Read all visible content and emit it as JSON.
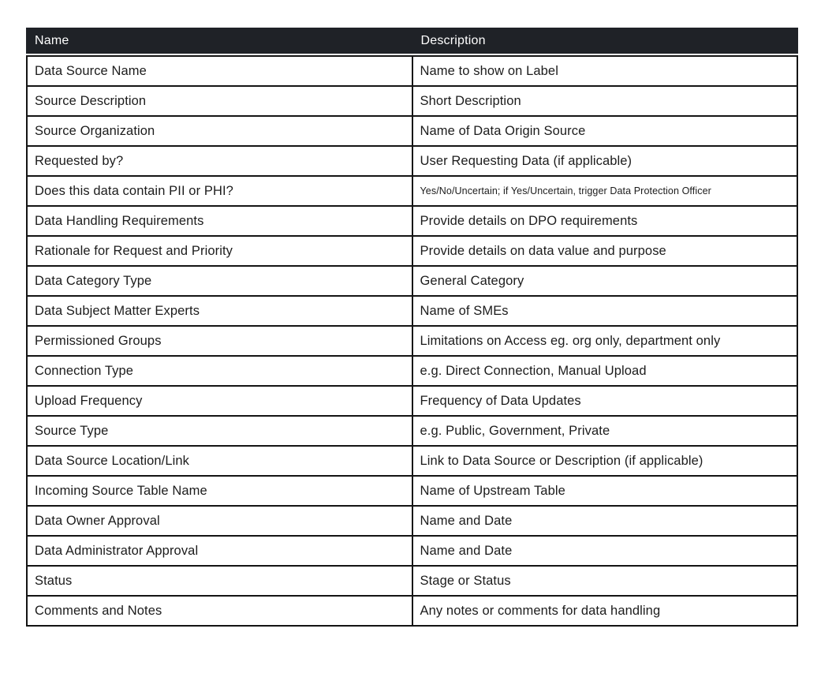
{
  "page": {
    "background_color": "#ffffff"
  },
  "table": {
    "title": "data-dictionary-table",
    "header_bg_color": "#1f2227",
    "header_text_color": "#ffffff",
    "border_color": "#141414",
    "body_text_color": "#1c1c1c",
    "columns": [
      {
        "label": "Name"
      },
      {
        "label": "Description"
      }
    ],
    "rows": [
      {
        "name": "Data Source Name",
        "description": "Name to show on Label"
      },
      {
        "name": "Source Description",
        "description": "Short Description"
      },
      {
        "name": "Source Organization",
        "description": "Name of Data Origin Source"
      },
      {
        "name": "Requested by?",
        "description": "User Requesting Data (if applicable)"
      },
      {
        "name": "Does this data contain PII or PHI?",
        "description": "Yes/No/Uncertain; if Yes/Uncertain, trigger Data Protection Officer"
      },
      {
        "name": "Data Handling Requirements",
        "description": "Provide details on DPO requirements"
      },
      {
        "name": "Rationale for Request and Priority",
        "description": "Provide details on data value and purpose"
      },
      {
        "name": "Data Category Type",
        "description": "General Category"
      },
      {
        "name": "Data Subject Matter Experts",
        "description": "Name of SMEs"
      },
      {
        "name": "Permissioned Groups",
        "description": "Limitations on Access eg. org only, department only"
      },
      {
        "name": "Connection Type",
        "description": "e.g. Direct Connection, Manual Upload"
      },
      {
        "name": "Upload Frequency",
        "description": "Frequency of Data Updates"
      },
      {
        "name": "Source Type",
        "description": "e.g. Public, Government, Private"
      },
      {
        "name": "Data Source Location/Link",
        "description": "Link to Data Source or Description (if applicable)"
      },
      {
        "name": "Incoming Source Table Name",
        "description": "Name of Upstream Table"
      },
      {
        "name": "Data Owner Approval",
        "description": "Name and Date"
      },
      {
        "name": "Data Administrator Approval",
        "description": "Name and Date"
      },
      {
        "name": "Status",
        "description": "Stage or Status"
      },
      {
        "name": "Comments and Notes",
        "description": "Any notes or comments for data handling"
      }
    ]
  }
}
